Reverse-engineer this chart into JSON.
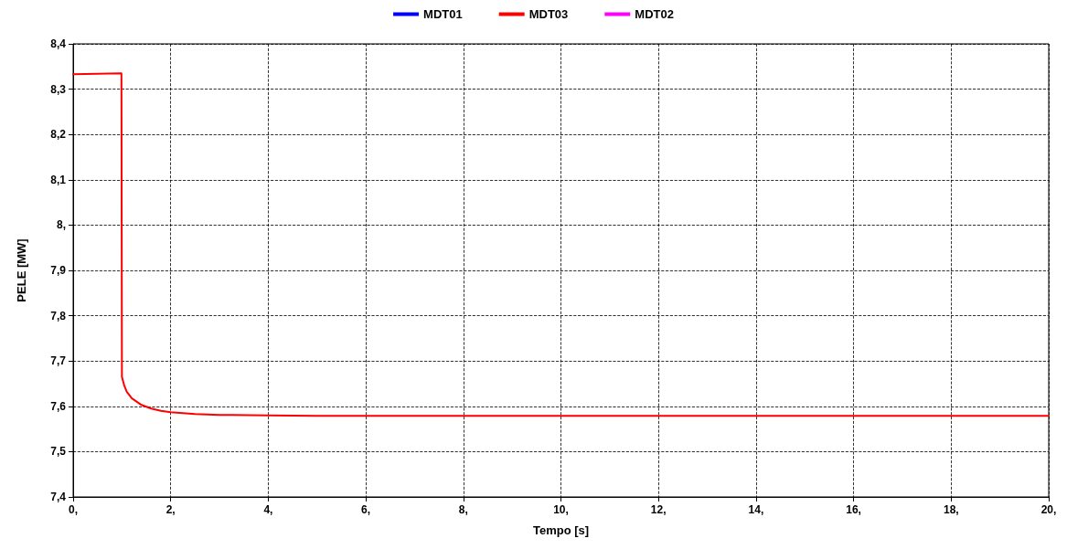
{
  "chart_data": {
    "type": "line",
    "xlabel": "Tempo [s]",
    "ylabel": "PELE [MW]",
    "x": [
      0,
      0.5,
      0.99,
      1.0,
      1.05,
      1.1,
      1.2,
      1.4,
      1.6,
      1.8,
      2.0,
      2.5,
      3.0,
      4.0,
      5.0,
      20.0
    ],
    "series": [
      {
        "name": "MDT01",
        "color": "#0000ff",
        "values": [
          null,
          null,
          null,
          null,
          null,
          null,
          null,
          null,
          null,
          null,
          null,
          null,
          null,
          null,
          null,
          null
        ]
      },
      {
        "name": "MDT03",
        "color": "#ff0000",
        "values": [
          8.333,
          8.334,
          8.335,
          7.665,
          7.645,
          7.632,
          7.618,
          7.603,
          7.595,
          7.59,
          7.587,
          7.583,
          7.581,
          7.58,
          7.579,
          7.579
        ]
      },
      {
        "name": "MDT02",
        "color": "#ff00ff",
        "values": [
          null,
          null,
          null,
          null,
          null,
          null,
          null,
          null,
          null,
          null,
          null,
          null,
          null,
          null,
          null,
          null
        ]
      }
    ],
    "xlim": [
      0,
      20
    ],
    "xticks": [
      {
        "value": 0,
        "label": "0,"
      },
      {
        "value": 2,
        "label": "2,"
      },
      {
        "value": 4,
        "label": "4,"
      },
      {
        "value": 6,
        "label": "6,"
      },
      {
        "value": 8,
        "label": "8,"
      },
      {
        "value": 10,
        "label": "10,"
      },
      {
        "value": 12,
        "label": "12,"
      },
      {
        "value": 14,
        "label": "14,"
      },
      {
        "value": 16,
        "label": "16,"
      },
      {
        "value": 18,
        "label": "18,"
      },
      {
        "value": 20,
        "label": "20,"
      }
    ],
    "ylim": [
      7.4,
      8.4
    ],
    "yticks": [
      {
        "value": 7.4,
        "label": "7,4"
      },
      {
        "value": 7.5,
        "label": "7,5"
      },
      {
        "value": 7.6,
        "label": "7,6"
      },
      {
        "value": 7.7,
        "label": "7,7"
      },
      {
        "value": 7.8,
        "label": "7,8"
      },
      {
        "value": 7.9,
        "label": "7,9"
      },
      {
        "value": 8.0,
        "label": "8,"
      },
      {
        "value": 8.1,
        "label": "8,1"
      },
      {
        "value": 8.2,
        "label": "8,2"
      },
      {
        "value": 8.3,
        "label": "8,3"
      },
      {
        "value": 8.4,
        "label": "8,4"
      }
    ],
    "grid": true,
    "legend": "top",
    "marker": "none",
    "line_style": "solid"
  }
}
